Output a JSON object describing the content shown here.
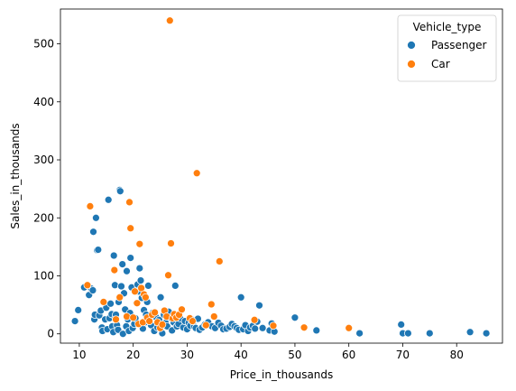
{
  "chart_data": {
    "type": "scatter",
    "title": "",
    "xlabel": "Price_in_thousands",
    "ylabel": "Sales_in_thousands",
    "xlim": [
      6.5,
      88.5
    ],
    "ylim": [
      -16,
      560
    ],
    "x_ticks": [
      10,
      20,
      30,
      40,
      50,
      60,
      70,
      80
    ],
    "y_ticks": [
      0,
      100,
      200,
      300,
      400,
      500
    ],
    "grid": false,
    "legend": {
      "title": "Vehicle_type",
      "placement": "top-right"
    },
    "series": [
      {
        "name": "Passenger",
        "color": "#1f77b4",
        "points": [
          [
            9.2,
            22
          ],
          [
            9.8,
            41
          ],
          [
            10.9,
            80
          ],
          [
            11.8,
            67
          ],
          [
            12.2,
            78
          ],
          [
            12.5,
            75
          ],
          [
            12.6,
            176
          ],
          [
            12.8,
            25
          ],
          [
            12.9,
            33
          ],
          [
            13.1,
            200
          ],
          [
            13.3,
            144
          ],
          [
            13.5,
            145
          ],
          [
            13.7,
            32
          ],
          [
            14.0,
            40
          ],
          [
            14.2,
            11
          ],
          [
            14.3,
            5
          ],
          [
            14.6,
            55
          ],
          [
            14.8,
            25
          ],
          [
            15.0,
            45
          ],
          [
            15.2,
            8
          ],
          [
            15.4,
            231
          ],
          [
            15.6,
            27
          ],
          [
            15.8,
            52
          ],
          [
            16.0,
            34
          ],
          [
            16.1,
            13
          ],
          [
            16.3,
            3
          ],
          [
            16.4,
            135
          ],
          [
            16.6,
            84
          ],
          [
            16.7,
            28
          ],
          [
            16.8,
            33
          ],
          [
            17.0,
            15
          ],
          [
            17.2,
            7
          ],
          [
            17.3,
            55
          ],
          [
            17.5,
            248
          ],
          [
            17.6,
            246
          ],
          [
            17.8,
            82
          ],
          [
            18.0,
            120
          ],
          [
            18.1,
            0
          ],
          [
            18.3,
            70
          ],
          [
            18.5,
            42
          ],
          [
            18.7,
            13
          ],
          [
            18.8,
            108
          ],
          [
            19.0,
            25
          ],
          [
            19.2,
            5
          ],
          [
            19.4,
            36
          ],
          [
            19.5,
            131
          ],
          [
            19.7,
            80
          ],
          [
            19.9,
            10
          ],
          [
            20.2,
            17
          ],
          [
            20.4,
            27
          ],
          [
            20.6,
            53
          ],
          [
            20.8,
            85
          ],
          [
            21.0,
            73
          ],
          [
            21.2,
            113
          ],
          [
            21.4,
            92
          ],
          [
            21.6,
            62
          ],
          [
            21.8,
            9
          ],
          [
            22.0,
            41
          ],
          [
            22.2,
            20
          ],
          [
            22.4,
            33
          ],
          [
            22.6,
            55
          ],
          [
            22.8,
            83
          ],
          [
            23.0,
            24
          ],
          [
            23.3,
            15
          ],
          [
            23.6,
            36
          ],
          [
            23.9,
            5
          ],
          [
            24.2,
            29
          ],
          [
            24.5,
            11
          ],
          [
            24.8,
            24
          ],
          [
            25.1,
            63
          ],
          [
            25.4,
            1
          ],
          [
            25.7,
            33
          ],
          [
            26.0,
            19
          ],
          [
            26.3,
            13
          ],
          [
            26.6,
            38
          ],
          [
            26.9,
            28
          ],
          [
            27.2,
            6
          ],
          [
            27.5,
            20
          ],
          [
            27.8,
            83
          ],
          [
            28.1,
            13
          ],
          [
            28.4,
            17
          ],
          [
            28.7,
            27
          ],
          [
            29.0,
            41
          ],
          [
            29.3,
            11
          ],
          [
            29.6,
            22
          ],
          [
            30.0,
            8
          ],
          [
            30.3,
            19
          ],
          [
            30.6,
            14
          ],
          [
            31.0,
            24
          ],
          [
            31.3,
            13
          ],
          [
            31.6,
            10
          ],
          [
            32.0,
            26
          ],
          [
            32.3,
            7
          ],
          [
            32.8,
            11
          ],
          [
            33.3,
            16
          ],
          [
            33.9,
            20
          ],
          [
            34.6,
            13
          ],
          [
            35.2,
            10
          ],
          [
            35.8,
            19
          ],
          [
            36.3,
            14
          ],
          [
            36.7,
            8
          ],
          [
            37.3,
            9
          ],
          [
            37.9,
            12
          ],
          [
            38.3,
            17
          ],
          [
            38.8,
            13
          ],
          [
            39.2,
            10
          ],
          [
            39.6,
            7
          ],
          [
            40.0,
            63
          ],
          [
            40.4,
            8
          ],
          [
            40.8,
            15
          ],
          [
            41.3,
            5
          ],
          [
            41.7,
            11
          ],
          [
            42.2,
            14
          ],
          [
            42.6,
            9
          ],
          [
            43.0,
            21
          ],
          [
            43.4,
            49
          ],
          [
            44.0,
            10
          ],
          [
            45.3,
            6
          ],
          [
            45.7,
            18
          ],
          [
            46.2,
            4
          ],
          [
            50.0,
            28
          ],
          [
            54.0,
            6
          ],
          [
            62.0,
            1
          ],
          [
            69.7,
            16
          ],
          [
            70.0,
            1
          ],
          [
            71.0,
            1
          ],
          [
            75.0,
            1
          ],
          [
            82.5,
            3
          ],
          [
            85.5,
            1
          ]
        ]
      },
      {
        "name": "Car",
        "color": "#ff7f0e",
        "points": [
          [
            11.5,
            84
          ],
          [
            12.0,
            220
          ],
          [
            14.5,
            55
          ],
          [
            16.5,
            110
          ],
          [
            16.8,
            25
          ],
          [
            17.5,
            63
          ],
          [
            18.8,
            30
          ],
          [
            19.3,
            227
          ],
          [
            19.5,
            182
          ],
          [
            20.0,
            28
          ],
          [
            20.3,
            73
          ],
          [
            20.7,
            53
          ],
          [
            21.0,
            17
          ],
          [
            21.2,
            155
          ],
          [
            21.5,
            79
          ],
          [
            21.8,
            20
          ],
          [
            22.0,
            68
          ],
          [
            22.3,
            63
          ],
          [
            22.6,
            28
          ],
          [
            23.0,
            22
          ],
          [
            23.5,
            33
          ],
          [
            24.0,
            37
          ],
          [
            24.5,
            20
          ],
          [
            25.0,
            10
          ],
          [
            25.4,
            16
          ],
          [
            25.8,
            40
          ],
          [
            26.2,
            30
          ],
          [
            26.5,
            101
          ],
          [
            26.8,
            540
          ],
          [
            27.0,
            156
          ],
          [
            27.3,
            27
          ],
          [
            27.6,
            34
          ],
          [
            28.0,
            28
          ],
          [
            28.5,
            33
          ],
          [
            29.0,
            42
          ],
          [
            30.5,
            27
          ],
          [
            31.0,
            22
          ],
          [
            31.8,
            277
          ],
          [
            33.5,
            15
          ],
          [
            34.5,
            51
          ],
          [
            35.0,
            30
          ],
          [
            36.0,
            125
          ],
          [
            42.5,
            24
          ],
          [
            46.0,
            14
          ],
          [
            51.7,
            11
          ],
          [
            60.0,
            10
          ]
        ]
      }
    ]
  }
}
